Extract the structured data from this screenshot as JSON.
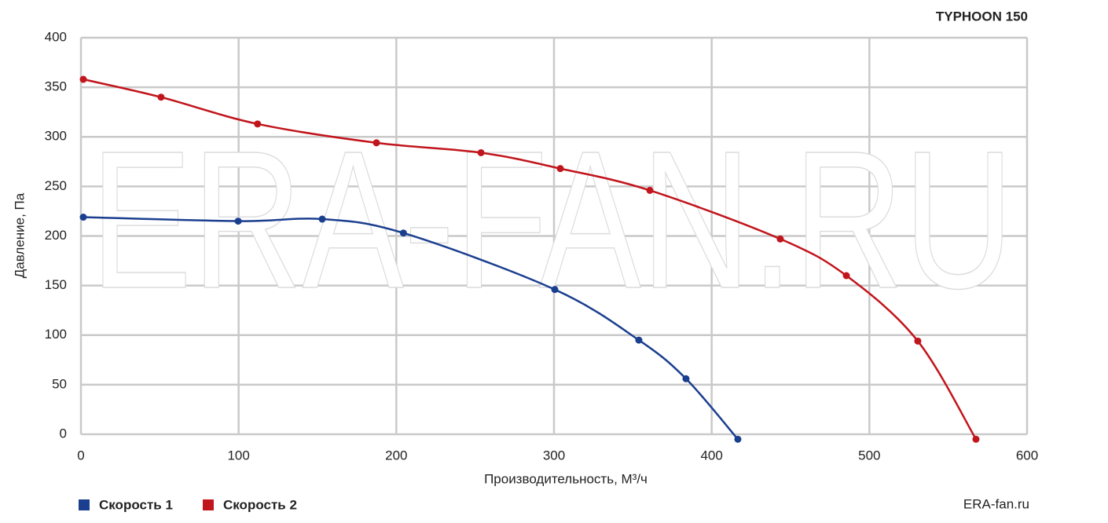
{
  "chart_data": {
    "type": "line",
    "title": "TYPHOON 150",
    "x_label": "Производительность, М³/ч",
    "y_label": "Давление, Па",
    "watermark": "ERA-FAN.RU",
    "source": "ERA-fan.ru",
    "xlim": [
      0,
      600
    ],
    "xticks": [
      0,
      100,
      200,
      300,
      400,
      500,
      600
    ],
    "ylim": [
      0,
      400
    ],
    "yticks": [
      0,
      50,
      100,
      150,
      200,
      250,
      300,
      350,
      400
    ],
    "grid": true,
    "legend": "bottom-left",
    "series": [
      {
        "name": "Скорость 1",
        "color": "#1b3f8f",
        "x": [
          1.5,
          99.7,
          153,
          204.5,
          300.5,
          353.8,
          383.7,
          416.6
        ],
        "values": [
          219,
          215,
          217,
          203,
          146,
          95,
          56,
          -5
        ]
      },
      {
        "name": "Скорость 2",
        "color": "#c1151c",
        "x": [
          1.5,
          50.8,
          112,
          187.4,
          253.7,
          304,
          360.8,
          443.5,
          485.4,
          530.7,
          567.6
        ],
        "values": [
          358,
          340,
          313,
          294,
          284,
          268,
          246,
          197,
          160,
          94,
          -5
        ]
      }
    ]
  }
}
